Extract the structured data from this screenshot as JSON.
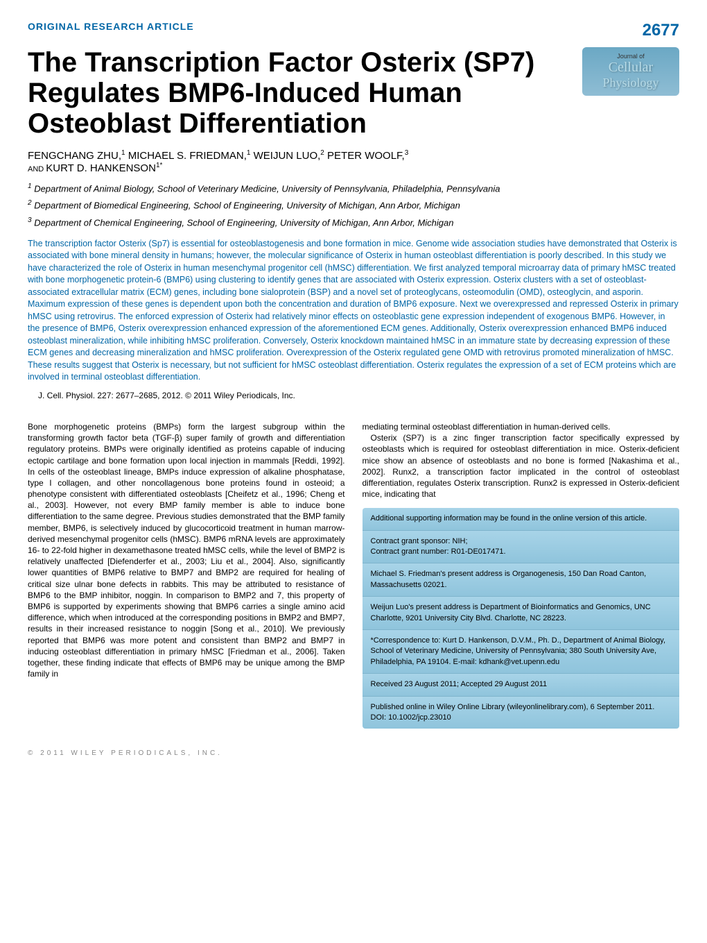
{
  "header": {
    "article_type": "ORIGINAL RESEARCH ARTICLE",
    "page_number": "2677",
    "journal_label": "Journal of",
    "journal_name1": "Cellular",
    "journal_name2": "Physiology"
  },
  "title": "The Transcription Factor Osterix (SP7) Regulates BMP6-Induced Human Osteoblast Differentiation",
  "authors": {
    "a1": "FENGCHANG ZHU,",
    "a1_sup": "1",
    "a2": " MICHAEL S. FRIEDMAN,",
    "a2_sup": "1",
    "a3": " WEIJUN LUO,",
    "a3_sup": "2",
    "a4": " PETER WOOLF,",
    "a4_sup": "3",
    "and": "AND ",
    "a5": "KURT D. HANKENSON",
    "a5_sup": "1*"
  },
  "affiliations": {
    "aff1_sup": "1",
    "aff1": "Department of Animal Biology, School of Veterinary Medicine, University of Pennsylvania, Philadelphia, Pennsylvania",
    "aff2_sup": "2",
    "aff2": "Department of Biomedical Engineering, School of Engineering, University of Michigan, Ann Arbor, Michigan",
    "aff3_sup": "3",
    "aff3": "Department of Chemical Engineering, School of Engineering, University of Michigan, Ann Arbor, Michigan"
  },
  "abstract": "The transcription factor Osterix (Sp7) is essential for osteoblastogenesis and bone formation in mice. Genome wide association studies have demonstrated that Osterix is associated with bone mineral density in humans; however, the molecular significance of Osterix in human osteoblast differentiation is poorly described. In this study we have characterized the role of Osterix in human mesenchymal progenitor cell (hMSC) differentiation. We first analyzed temporal microarray data of primary hMSC treated with bone morphogenetic protein-6 (BMP6) using clustering to identify genes that are associated with Osterix expression. Osterix clusters with a set of osteoblast-associated extracellular matrix (ECM) genes, including bone sialoprotein (BSP) and a novel set of proteoglycans, osteomodulin (OMD), osteoglycin, and asporin. Maximum expression of these genes is dependent upon both the concentration and duration of BMP6 exposure. Next we overexpressed and repressed Osterix in primary hMSC using retrovirus. The enforced expression of Osterix had relatively minor effects on osteoblastic gene expression independent of exogenous BMP6. However, in the presence of BMP6, Osterix overexpression enhanced expression of the aforementioned ECM genes. Additionally, Osterix overexpression enhanced BMP6 induced osteoblast mineralization, while inhibiting hMSC proliferation. Conversely, Osterix knockdown maintained hMSC in an immature state by decreasing expression of these ECM genes and decreasing mineralization and hMSC proliferation. Overexpression of the Osterix regulated gene OMD with retrovirus promoted mineralization of hMSC. These results suggest that Osterix is necessary, but not sufficient for hMSC osteoblast differentiation. Osterix regulates the expression of a set of ECM proteins which are involved in terminal osteoblast differentiation.",
  "citation": "J. Cell. Physiol. 227: 2677–2685, 2012. © 2011 Wiley Periodicals, Inc.",
  "body": {
    "left": "Bone morphogenetic proteins (BMPs) form the largest subgroup within the transforming growth factor beta (TGF-β) super family of growth and differentiation regulatory proteins. BMPs were originally identified as proteins capable of inducing ectopic cartilage and bone formation upon local injection in mammals [Reddi, 1992]. In cells of the osteoblast lineage, BMPs induce expression of alkaline phosphatase, type I collagen, and other noncollagenous bone proteins found in osteoid; a phenotype consistent with differentiated osteoblasts [Cheifetz et al., 1996; Cheng et al., 2003]. However, not every BMP family member is able to induce bone differentiation to the same degree. Previous studies demonstrated that the BMP family member, BMP6, is selectively induced by glucocorticoid treatment in human marrow-derived mesenchymal progenitor cells (hMSC). BMP6 mRNA levels are approximately 16- to 22-fold higher in dexamethasone treated hMSC cells, while the level of BMP2 is relatively unaffected [Diefenderfer et al., 2003; Liu et al., 2004]. Also, significantly lower quantities of BMP6 relative to BMP7 and BMP2 are required for healing of critical size ulnar bone defects in rabbits. This may be attributed to resistance of BMP6 to the BMP inhibitor, noggin. In comparison to BMP2 and 7, this property of BMP6 is supported by experiments showing that BMP6 carries a single amino acid difference, which when introduced at the corresponding positions in BMP2 and BMP7, results in their increased resistance to noggin [Song et al., 2010]. We previously reported that BMP6 was more potent and consistent than BMP2 and BMP7 in inducing osteoblast differentiation in primary hMSC [Friedman et al., 2006]. Taken together, these finding indicate that effects of BMP6 may be unique among the BMP family in",
    "right_p1": "mediating terminal osteoblast differentiation in human-derived cells.",
    "right_p2": "Osterix (SP7) is a zinc finger transcription factor specifically expressed by osteoblasts which is required for osteoblast differentiation in mice. Osterix-deficient mice show an absence of osteoblasts and no bone is formed [Nakashima et al., 2002]. Runx2, a transcription factor implicated in the control of osteoblast differentiation, regulates Osterix transcription. Runx2 is expressed in Osterix-deficient mice, indicating that"
  },
  "infobox": {
    "supporting": "Additional supporting information may be found in the online version of this article.",
    "sponsor": "Contract grant sponsor: NIH;",
    "grant": "Contract grant number: R01-DE017471.",
    "address1": "Michael S. Friedman's present address is Organogenesis, 150 Dan Road Canton, Massachusetts 02021.",
    "address2": "Weijun Luo's present address is Department of Bioinformatics and Genomics, UNC Charlotte, 9201 University City Blvd. Charlotte, NC 28223.",
    "correspondence": "*Correspondence to: Kurt D. Hankenson, D.V.M., Ph. D., Department of Animal Biology, School of Veterinary Medicine, University of Pennsylvania; 380 South University Ave, Philadelphia, PA 19104. E-mail: kdhank@vet.upenn.edu",
    "received": "Received 23 August 2011; Accepted 29 August 2011",
    "published": "Published online in Wiley Online Library (wileyonlinelibrary.com), 6 September 2011. DOI: 10.1002/jcp.23010"
  },
  "footer": "© 2011 WILEY PERIODICALS, INC."
}
